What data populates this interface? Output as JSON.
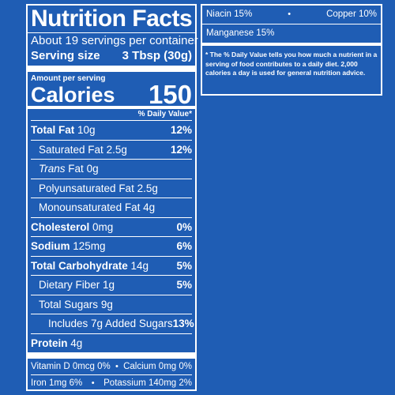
{
  "panel": {
    "title": "Nutrition Facts",
    "servings_per_container": "About 19 servings per container",
    "serving_size_label": "Serving size",
    "serving_size_value": "3 Tbsp (30g)",
    "amount_per_serving": "Amount per serving",
    "calories_label": "Calories",
    "calories_value": "150",
    "dv_header": "% Daily Value*",
    "nutrients": [
      {
        "label": "Total Fat",
        "amount": "10g",
        "dv": "12%"
      },
      {
        "label": "Saturated Fat",
        "amount": "2.5g",
        "dv": "12%"
      },
      {
        "label_italic": "Trans",
        "label": "Fat",
        "amount": "0g",
        "dv": ""
      },
      {
        "label": "Polyunsaturated Fat",
        "amount": "2.5g",
        "dv": ""
      },
      {
        "label": "Monounsaturated Fat",
        "amount": "4g",
        "dv": ""
      },
      {
        "label": "Cholesterol",
        "amount": "0mg",
        "dv": "0%"
      },
      {
        "label": "Sodium",
        "amount": "125mg",
        "dv": "6%"
      },
      {
        "label": "Total Carbohydrate",
        "amount": "14g",
        "dv": "5%"
      },
      {
        "label": "Dietary Fiber",
        "amount": "1g",
        "dv": "5%"
      },
      {
        "label": "Total Sugars",
        "amount": "9g",
        "dv": ""
      },
      {
        "label": "Includes 7g Added Sugars",
        "amount": "",
        "dv": "13%"
      },
      {
        "label": "Protein",
        "amount": "4g",
        "dv": ""
      }
    ],
    "vitamins_row1": {
      "left": "Vitamin D 0mcg 0%",
      "right": "Calcium 0mg 0%"
    },
    "vitamins_row2": {
      "left": "Iron 1mg 6%",
      "right": "Potassium 140mg 2%"
    },
    "separator": "•"
  },
  "side": {
    "row1": {
      "left": "Niacin 15%",
      "right": "Copper 10%"
    },
    "row2": "Manganese 15%",
    "footnote": "* The % Daily Value tells you how much a nutrient in a serving of food contributes to a daily diet. 2,000 calories a day is used for general nutrition advice."
  },
  "colors": {
    "background": "#1f5db4",
    "text": "#ffffff"
  }
}
